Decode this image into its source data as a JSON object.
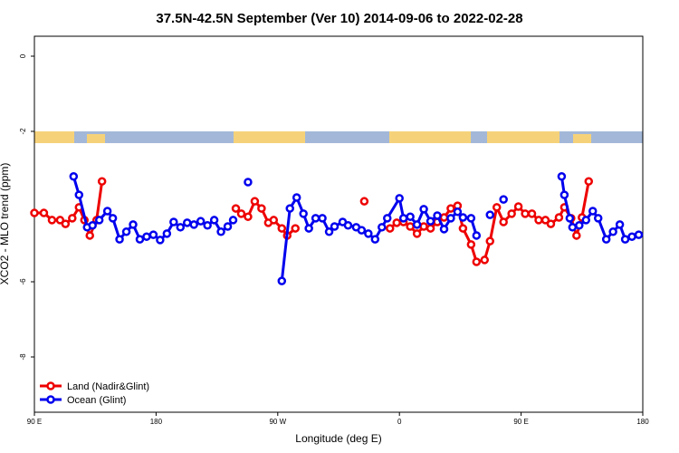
{
  "chart_data": {
    "type": "line",
    "title": "37.5N-42.5N September (Ver 10)   2014-09-06 to 2022-02-28",
    "x_label": "Longitude (deg E)",
    "y_label": "XCO2 - MLO trend (ppm)",
    "xlim": [
      90,
      540
    ],
    "xticks": [
      {
        "value": 90,
        "label": "90 E"
      },
      {
        "value": 180,
        "label": "180"
      },
      {
        "value": 270,
        "label": "90 W"
      },
      {
        "value": 360,
        "label": "0"
      },
      {
        "value": 450,
        "label": "90 E"
      },
      {
        "value": 540,
        "label": "180"
      }
    ],
    "ylim": [
      -9.47,
      0.53
    ],
    "yticks": [
      0,
      -2,
      -6,
      -8
    ],
    "legend": "bottomleft",
    "series": [
      {
        "name": "Land (Nadir&Glint)",
        "color": "#ee0000",
        "x": [
          90,
          97,
          103,
          109,
          113,
          118,
          123,
          127,
          131,
          136,
          140,
          null,
          239,
          243,
          248,
          253,
          258,
          263,
          267,
          273,
          277,
          283,
          null,
          334,
          null,
          353,
          358,
          363,
          368,
          373,
          378,
          383,
          388,
          393,
          398,
          403,
          407,
          413,
          417,
          423,
          427,
          432,
          437,
          443,
          448,
          453,
          458,
          463,
          468,
          472,
          478,
          482,
          487,
          491,
          495,
          500
        ],
        "values": [
          -4.17,
          -4.17,
          -4.36,
          -4.36,
          -4.46,
          -4.31,
          -4.02,
          -4.36,
          -4.77,
          -4.36,
          -3.33,
          null,
          -4.05,
          -4.19,
          -4.27,
          -3.86,
          -4.05,
          -4.43,
          -4.36,
          -4.58,
          -4.77,
          -4.58,
          null,
          -3.86,
          null,
          -4.58,
          -4.43,
          -4.41,
          -4.53,
          -4.72,
          -4.53,
          -4.58,
          -4.41,
          -4.29,
          -4.05,
          -3.98,
          -4.58,
          -5.01,
          -5.47,
          -5.42,
          -4.92,
          -4.02,
          -4.41,
          -4.19,
          -4.0,
          -4.19,
          -4.19,
          -4.36,
          -4.36,
          -4.46,
          -4.29,
          -4.02,
          -4.31,
          -4.77,
          -4.29,
          -3.33
        ]
      },
      {
        "name": "Ocean (Glint)",
        "color": "#0000ee",
        "x": [
          119,
          123,
          129,
          133,
          138,
          144,
          148,
          153,
          158,
          163,
          168,
          173,
          178,
          183,
          188,
          193,
          198,
          203,
          208,
          213,
          218,
          223,
          228,
          233,
          237,
          null,
          248,
          null,
          273,
          279,
          284,
          289,
          293,
          298,
          303,
          308,
          312,
          318,
          322,
          328,
          332,
          337,
          342,
          347,
          351,
          360,
          363,
          368,
          373,
          378,
          383,
          388,
          393,
          398,
          403,
          407,
          413,
          417,
          null,
          427,
          null,
          437,
          null,
          480,
          482,
          486,
          488,
          493,
          498,
          503,
          507,
          513,
          518,
          523,
          527,
          532,
          537
        ],
        "values": [
          -3.2,
          -3.69,
          -4.55,
          -4.5,
          -4.36,
          -4.12,
          -4.31,
          -4.87,
          -4.67,
          -4.48,
          -4.87,
          -4.8,
          -4.75,
          -4.89,
          -4.72,
          -4.41,
          -4.55,
          -4.43,
          -4.48,
          -4.39,
          -4.5,
          -4.36,
          -4.67,
          -4.53,
          -4.36,
          null,
          -3.35,
          null,
          -5.98,
          -4.05,
          -3.76,
          -4.19,
          -4.58,
          -4.31,
          -4.31,
          -4.67,
          -4.53,
          -4.41,
          -4.5,
          -4.55,
          -4.63,
          -4.72,
          -4.87,
          -4.55,
          -4.31,
          -3.78,
          -4.31,
          -4.27,
          -4.48,
          -4.07,
          -4.39,
          -4.24,
          -4.6,
          -4.31,
          -4.14,
          -4.29,
          -4.31,
          -4.77,
          null,
          -4.22,
          null,
          -3.81,
          null,
          -3.2,
          -3.69,
          -4.31,
          -4.55,
          -4.5,
          -4.36,
          -4.12,
          -4.31,
          -4.87,
          -4.67,
          -4.48,
          -4.87,
          -4.8,
          -4.75
        ]
      }
    ]
  }
}
